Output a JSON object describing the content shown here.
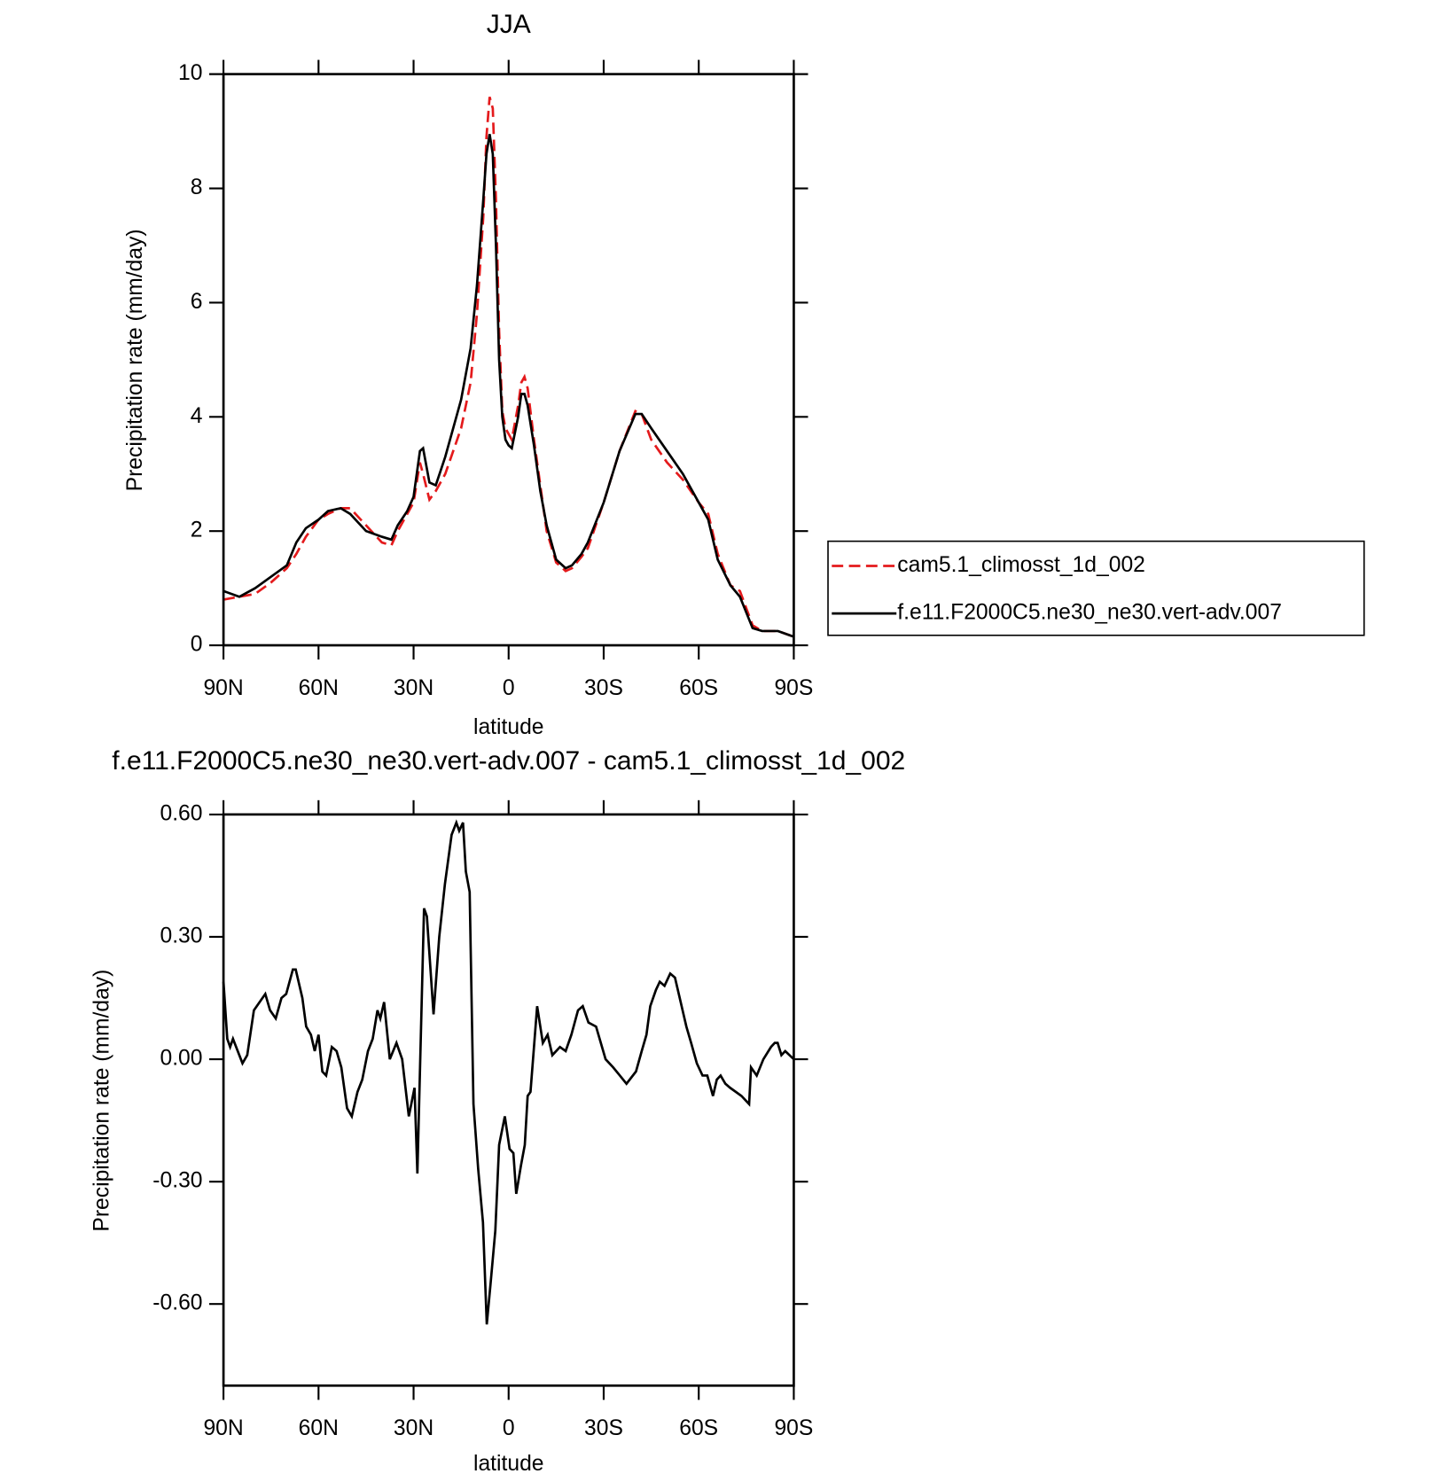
{
  "chart_data": [
    {
      "type": "line",
      "title": "JJA",
      "xlabel": "latitude",
      "ylabel": "Precipitation rate (mm/day)",
      "x": [
        90,
        85,
        80,
        75,
        70,
        67,
        64,
        60,
        57,
        53,
        50,
        45,
        40,
        37,
        35,
        32,
        30,
        28,
        27,
        25,
        23,
        20,
        15,
        12,
        10,
        8,
        7,
        6,
        5,
        4,
        3,
        2,
        1,
        0,
        -1,
        -3,
        -4,
        -5,
        -6,
        -8,
        -10,
        -12,
        -15,
        -18,
        -20,
        -23,
        -25,
        -30,
        -35,
        -40,
        -42,
        -45,
        -50,
        -55,
        -60,
        -63,
        -66,
        -70,
        -73,
        -77,
        -80,
        -85,
        -90
      ],
      "series": [
        {
          "name": "cam5.1_climosst_1d_002",
          "color": "#e41a1c",
          "line_style": "dashed",
          "values": [
            0.8,
            0.85,
            0.9,
            1.1,
            1.35,
            1.6,
            1.9,
            2.2,
            2.3,
            2.4,
            2.4,
            2.1,
            1.8,
            1.75,
            2.0,
            2.3,
            2.5,
            3.2,
            3.0,
            2.55,
            2.7,
            3.0,
            3.8,
            4.6,
            5.8,
            7.5,
            8.9,
            9.6,
            9.4,
            7.8,
            5.5,
            4.1,
            3.8,
            3.7,
            3.6,
            4.2,
            4.6,
            4.7,
            4.5,
            3.6,
            2.8,
            2.0,
            1.45,
            1.3,
            1.35,
            1.55,
            1.7,
            2.5,
            3.4,
            4.1,
            4.05,
            3.6,
            3.2,
            2.9,
            2.5,
            2.3,
            1.6,
            1.05,
            0.95,
            0.35,
            0.25,
            0.25,
            0.15
          ]
        },
        {
          "name": "f.e11.F2000C5.ne30_ne30.vert-adv.007",
          "color": "#000000",
          "line_style": "solid",
          "values": [
            0.95,
            0.85,
            1.0,
            1.2,
            1.4,
            1.8,
            2.05,
            2.2,
            2.35,
            2.4,
            2.3,
            2.0,
            1.9,
            1.85,
            2.1,
            2.35,
            2.6,
            3.4,
            3.45,
            2.85,
            2.8,
            3.3,
            4.3,
            5.2,
            6.3,
            7.8,
            8.6,
            8.95,
            8.6,
            7.0,
            5.0,
            4.0,
            3.6,
            3.5,
            3.45,
            4.0,
            4.4,
            4.4,
            4.2,
            3.5,
            2.7,
            2.1,
            1.5,
            1.35,
            1.4,
            1.6,
            1.8,
            2.5,
            3.4,
            4.05,
            4.05,
            3.8,
            3.4,
            3.0,
            2.5,
            2.2,
            1.5,
            1.05,
            0.85,
            0.3,
            0.25,
            0.25,
            0.15
          ]
        }
      ],
      "xlim": [
        90,
        -90
      ],
      "xticks": [
        {
          "value": 90,
          "label": "90N"
        },
        {
          "value": 60,
          "label": "60N"
        },
        {
          "value": 30,
          "label": "30N"
        },
        0,
        {
          "value": -30,
          "label": "30S"
        },
        {
          "value": -60,
          "label": "60S"
        },
        {
          "value": -90,
          "label": "90S"
        }
      ],
      "ylim": [
        0,
        10
      ],
      "yticks": [
        0,
        2,
        4,
        6,
        8,
        10
      ],
      "legend": "right"
    },
    {
      "type": "line",
      "title": "f.e11.F2000C5.ne30_ne30.vert-adv.007 - cam5.1_climosst_1d_002",
      "xlabel": "latitude",
      "ylabel": "Precipitation rate (mm/day)",
      "x": [
        90,
        88.8,
        87.9,
        87,
        85.5,
        84,
        82.5,
        80.4,
        78.6,
        76.8,
        75.3,
        73.5,
        71.7,
        70.2,
        68.1,
        67.2,
        65.1,
        63.9,
        62.4,
        61.2,
        60,
        58.8,
        57.6,
        55.8,
        54.3,
        52.8,
        51,
        49.5,
        47.7,
        46.2,
        44.4,
        42.9,
        41.4,
        40.5,
        39.3,
        37.5,
        35.4,
        33.6,
        31.5,
        29.7,
        28.8,
        26.7,
        25.8,
        23.7,
        21.9,
        20.1,
        18,
        16.5,
        15.6,
        14.4,
        13.5,
        12.3,
        11.1,
        9.6,
        8.1,
        6.9,
        5.7,
        4.2,
        3,
        1.2,
        -0.3,
        -1.5,
        -2.4,
        -3.9,
        -5.1,
        -6,
        -6.9,
        -9,
        -10.8,
        -12.3,
        -13.8,
        -16.2,
        -18,
        -19.8,
        -21.9,
        -23.4,
        -25.2,
        -27.6,
        -30.6,
        -33,
        -35.1,
        -37.2,
        -40.2,
        -42,
        -43.5,
        -44.7,
        -46.5,
        -47.7,
        -49.2,
        -51,
        -52.5,
        -54.3,
        -56.1,
        -57.6,
        -59.4,
        -61.2,
        -62.7,
        -64.5,
        -65.7,
        -66.9,
        -68.4,
        -69.9,
        -71.7,
        -73.5,
        -75.9,
        -76.5,
        -78.3,
        -80.4,
        -82.8,
        -84,
        -84.9,
        -86.1,
        -87.3,
        -90
      ],
      "values": [
        0.19,
        0.05,
        0.03,
        0.05,
        0.02,
        -0.01,
        0.01,
        0.12,
        0.14,
        0.16,
        0.12,
        0.1,
        0.15,
        0.16,
        0.22,
        0.22,
        0.15,
        0.08,
        0.06,
        0.02,
        0.06,
        -0.03,
        -0.04,
        0.03,
        0.02,
        -0.02,
        -0.12,
        -0.14,
        -0.08,
        -0.05,
        0.02,
        0.05,
        0.12,
        0.1,
        0.14,
        0.0,
        0.04,
        0.0,
        -0.14,
        -0.07,
        -0.28,
        0.37,
        0.35,
        0.11,
        0.3,
        0.43,
        0.55,
        0.58,
        0.56,
        0.58,
        0.46,
        0.41,
        -0.11,
        -0.27,
        -0.4,
        -0.65,
        -0.55,
        -0.42,
        -0.21,
        -0.14,
        -0.22,
        -0.23,
        -0.33,
        -0.26,
        -0.21,
        -0.09,
        -0.08,
        0.13,
        0.04,
        0.06,
        0.01,
        0.03,
        0.02,
        0.06,
        0.12,
        0.13,
        0.09,
        0.08,
        0.0,
        -0.02,
        -0.04,
        -0.06,
        -0.03,
        0.02,
        0.06,
        0.13,
        0.17,
        0.19,
        0.18,
        0.21,
        0.2,
        0.14,
        0.08,
        0.04,
        -0.01,
        -0.04,
        -0.04,
        -0.09,
        -0.05,
        -0.04,
        -0.06,
        -0.07,
        -0.08,
        -0.09,
        -0.11,
        -0.02,
        -0.04,
        0.0,
        0.03,
        0.04,
        0.04,
        0.01,
        0.02,
        0.0
      ],
      "color": "#000000",
      "xlim": [
        90,
        -90
      ],
      "xticks": [
        {
          "value": 90,
          "label": "90N"
        },
        {
          "value": 60,
          "label": "60N"
        },
        {
          "value": 30,
          "label": "30N"
        },
        0,
        {
          "value": -30,
          "label": "30S"
        },
        {
          "value": -60,
          "label": "60S"
        },
        {
          "value": -90,
          "label": "90S"
        }
      ],
      "ylim": [
        -0.8,
        0.6
      ],
      "yticks": [
        {
          "value": 0.6,
          "label": "0.60"
        },
        {
          "value": 0.3,
          "label": "0.30"
        },
        {
          "value": 0,
          "label": "0.00"
        },
        {
          "value": -0.3,
          "label": "-0.30"
        },
        {
          "value": -0.6,
          "label": "-0.60"
        }
      ]
    }
  ]
}
